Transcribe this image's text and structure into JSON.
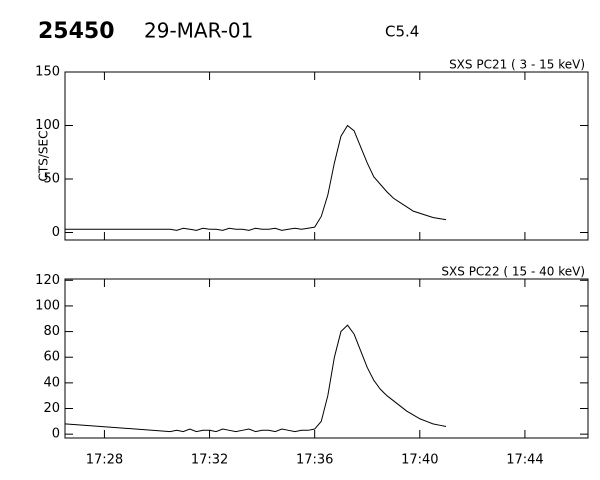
{
  "header": {
    "id": "25450",
    "date": "29-MAR-01",
    "class": "C5.4"
  },
  "chart_data": [
    {
      "type": "line",
      "title": "SXS PC21  (  3 - 15 keV)",
      "ylabel": "CTS/SEC",
      "color": "#000000",
      "x": [
        26.5,
        30.5,
        30.75,
        31,
        31.25,
        31.5,
        31.75,
        32,
        32.25,
        32.5,
        32.75,
        33,
        33.25,
        33.5,
        33.75,
        34,
        34.25,
        34.5,
        34.75,
        35,
        35.25,
        35.5,
        35.75,
        36,
        36.25,
        36.5,
        36.75,
        37,
        37.25,
        37.5,
        37.75,
        38,
        38.25,
        38.5,
        38.75,
        39,
        39.25,
        39.5,
        39.75,
        40,
        40.25,
        40.5,
        40.75,
        41
      ],
      "values": [
        3,
        3,
        2,
        4,
        3,
        2,
        4,
        3,
        3,
        2,
        4,
        3,
        3,
        2,
        4,
        3,
        3,
        4,
        2,
        3,
        4,
        3,
        4,
        5,
        15,
        35,
        65,
        90,
        100,
        95,
        80,
        65,
        52,
        45,
        38,
        32,
        28,
        24,
        20,
        18,
        16,
        14,
        13,
        12
      ],
      "xlim": [
        26.5,
        46.4
      ],
      "xticks": [
        28,
        32,
        36,
        40,
        44
      ],
      "ylim": [
        -7,
        150
      ],
      "yticks": [
        0,
        50,
        100,
        150
      ]
    },
    {
      "type": "line",
      "title": "SXS PC22  ( 15 - 40 keV)",
      "color": "#000000",
      "x": [
        26.5,
        30.5,
        30.75,
        31,
        31.25,
        31.5,
        31.75,
        32,
        32.25,
        32.5,
        32.75,
        33,
        33.25,
        33.5,
        33.75,
        34,
        34.25,
        34.5,
        34.75,
        35,
        35.25,
        35.5,
        35.75,
        36,
        36.25,
        36.5,
        36.75,
        37,
        37.25,
        37.5,
        37.75,
        38,
        38.25,
        38.5,
        38.75,
        39,
        39.25,
        39.5,
        39.75,
        40,
        40.25,
        40.5,
        40.75,
        41
      ],
      "values": [
        8,
        2,
        3,
        2,
        4,
        2,
        3,
        3,
        2,
        4,
        3,
        2,
        3,
        4,
        2,
        3,
        3,
        2,
        4,
        3,
        2,
        3,
        3,
        4,
        10,
        30,
        60,
        80,
        85,
        78,
        65,
        52,
        42,
        35,
        30,
        26,
        22,
        18,
        15,
        12,
        10,
        8,
        7,
        6
      ],
      "xlim": [
        26.5,
        46.4
      ],
      "xticks": [
        {
          "value": 28,
          "label": "17:28"
        },
        {
          "value": 32,
          "label": "17:32"
        },
        {
          "value": 36,
          "label": "17:36"
        },
        {
          "value": 40,
          "label": "17:40"
        },
        {
          "value": 44,
          "label": "17:44"
        }
      ],
      "ylim": [
        -3,
        121
      ],
      "yticks": [
        0,
        20,
        40,
        60,
        80,
        100,
        120
      ]
    }
  ]
}
